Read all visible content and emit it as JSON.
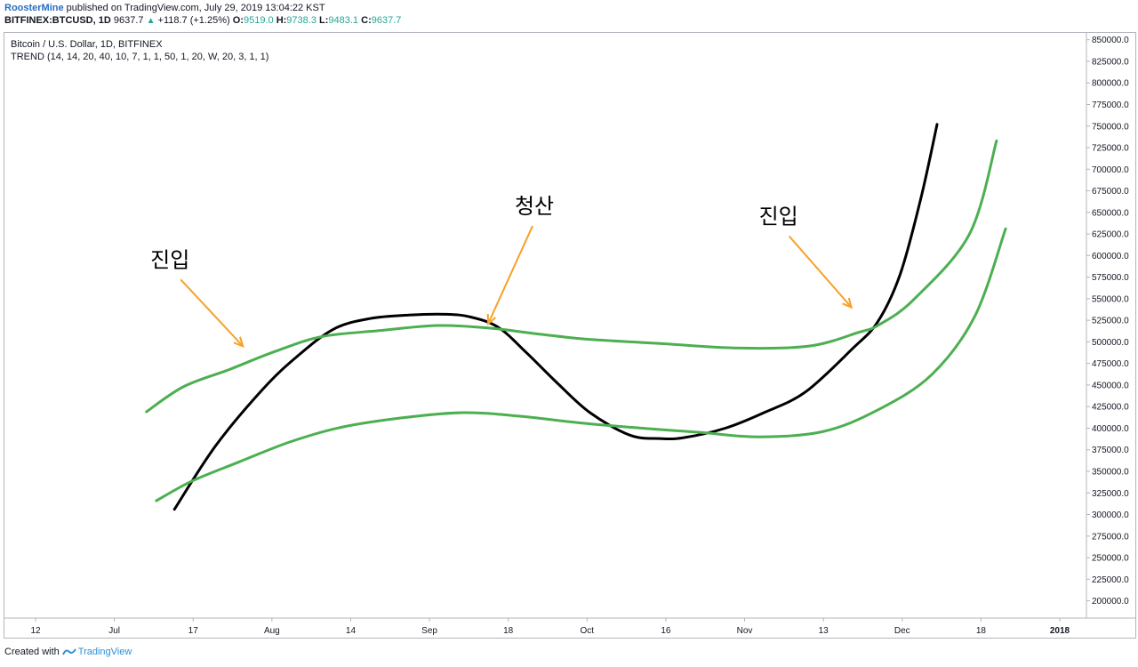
{
  "header": {
    "author": "RoosterMine",
    "published_text": " published on TradingView.com, July 29, 2019 13:04:22 KST",
    "symbol": "BITFINEX:BTCUSD, 1D",
    "price": "9637.7",
    "change": "+118.7 (+1.25%)",
    "o_label": "O:",
    "o_value": "9519.0",
    "h_label": "H:",
    "h_value": "9738.3",
    "l_label": "L:",
    "l_value": "9483.1",
    "c_label": "C:",
    "c_value": "9637.7",
    "up_color": "#26a69a"
  },
  "footer": {
    "created_with": "Created with",
    "brand": "TradingView",
    "logo_icon": "tradingview-logo-icon"
  },
  "chart_data": {
    "type": "line",
    "title": "Bitcoin / U.S. Dollar, 1D, BITFINEX",
    "subtitle": "TREND (14, 14, 20, 40, 10, 7, 1, 1, 50, 1, 20, W, 20, 3, 1, 1)",
    "ylim": [
      180000,
      860000
    ],
    "y_ticks": [
      200000,
      225000,
      250000,
      275000,
      300000,
      325000,
      350000,
      375000,
      400000,
      425000,
      450000,
      475000,
      500000,
      525000,
      550000,
      575000,
      600000,
      625000,
      650000,
      675000,
      700000,
      725000,
      750000,
      775000,
      800000,
      825000,
      850000
    ],
    "y_tick_format": "decimal1",
    "x_ticks": [
      "12",
      "Jul",
      "17",
      "Aug",
      "14",
      "Sep",
      "18",
      "Oct",
      "16",
      "Nov",
      "13",
      "Dec",
      "18",
      "2018"
    ],
    "grid": false,
    "colors": {
      "price": "#000000",
      "bands": "#4caf50",
      "arrow": "#f7a12a",
      "axis": "#b2b5be"
    },
    "series": [
      {
        "name": "",
        "color": "#000000",
        "x": [
          0.154,
          0.2,
          0.252,
          0.29,
          0.331,
          0.371,
          0.414,
          0.454,
          0.482,
          0.513,
          0.544,
          0.579,
          0.615,
          0.659,
          0.692,
          0.719,
          0.765,
          0.808,
          0.854,
          0.906,
          0.934,
          0.959,
          0.982,
          1.0
        ],
        "y": [
          306000,
          380000,
          445000,
          483000,
          515000,
          527000,
          531000,
          532000,
          529000,
          517000,
          488000,
          452000,
          418000,
          392000,
          388000,
          389000,
          400000,
          418000,
          442000,
          492000,
          523000,
          578000,
          666000,
          752000
        ]
      },
      {
        "name": "",
        "color": "#4caf50",
        "x": [
          0.123,
          0.164,
          0.215,
          0.266,
          0.317,
          0.381,
          0.446,
          0.503,
          0.559,
          0.613,
          0.695,
          0.774,
          0.857,
          0.913,
          0.936,
          0.975,
          1.036,
          1.066
        ],
        "y": [
          419000,
          448000,
          468000,
          489000,
          506000,
          513000,
          519000,
          516000,
          509000,
          503000,
          498000,
          493000,
          495000,
          511000,
          520000,
          550000,
          625000,
          733000
        ]
      },
      {
        "name": "",
        "color": "#4caf50",
        "x": [
          0.134,
          0.174,
          0.226,
          0.282,
          0.339,
          0.407,
          0.475,
          0.536,
          0.605,
          0.673,
          0.738,
          0.801,
          0.873,
          0.934,
          0.994,
          1.042,
          1.076
        ],
        "y": [
          316000,
          339000,
          361000,
          384000,
          401000,
          412000,
          418000,
          414000,
          406000,
          400000,
          395000,
          390000,
          396000,
          421000,
          462000,
          530000,
          631000
        ]
      }
    ],
    "annotations": [
      {
        "text": "진입",
        "at_x": 0.23,
        "at_y": 495000
      },
      {
        "text": "청산",
        "at_x": 0.502,
        "at_y": 521000
      },
      {
        "text": "진입",
        "at_x": 0.905,
        "at_y": 540000
      }
    ]
  }
}
